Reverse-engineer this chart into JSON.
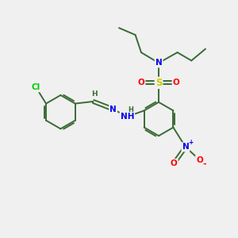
{
  "bg_color": "#f0f0f0",
  "bond_color": "#3a6b35",
  "atom_colors": {
    "N": "#0000ee",
    "S": "#cccc00",
    "O": "#ff0000",
    "Cl": "#00cc00",
    "H": "#3a6b35",
    "NO2_N": "#0000ee",
    "NO2_O": "#ff0000"
  },
  "font_size": 7.5,
  "bond_lw": 1.4
}
